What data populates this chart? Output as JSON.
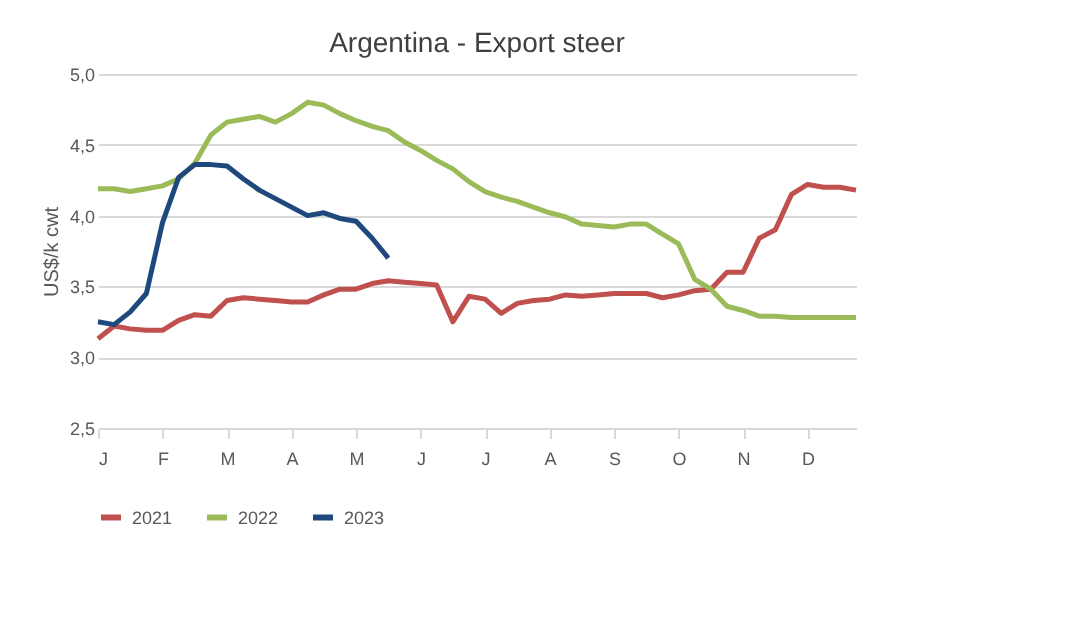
{
  "chart_data": {
    "type": "line",
    "title": "Argentina - Export steer",
    "ylabel": "US$/k cwt",
    "categories": [
      "J",
      null,
      null,
      null,
      "F",
      null,
      null,
      null,
      "M",
      null,
      null,
      null,
      "A",
      null,
      null,
      null,
      "M",
      null,
      null,
      null,
      "J",
      null,
      null,
      null,
      "J",
      null,
      null,
      null,
      "A",
      null,
      null,
      null,
      "S",
      null,
      null,
      null,
      "O",
      null,
      null,
      null,
      "N",
      null,
      null,
      null,
      "D",
      null,
      null,
      null
    ],
    "ylim": [
      2.5,
      5.0
    ],
    "yticks": [
      {
        "value": 2.5,
        "label": "2,5"
      },
      {
        "value": 3.0,
        "label": "3,0"
      },
      {
        "value": 3.5,
        "label": "3,5"
      },
      {
        "value": 4.0,
        "label": "4,0"
      },
      {
        "value": 4.5,
        "label": "4,5"
      },
      {
        "value": 5.0,
        "label": "5,0"
      }
    ],
    "grid": "y",
    "legend": "bottom",
    "marker": "none",
    "line_style": "solid",
    "series": [
      {
        "name": "2021",
        "color": "#c0504d",
        "values": [
          3.13,
          3.22,
          3.2,
          3.19,
          3.19,
          3.26,
          3.3,
          3.29,
          3.4,
          3.42,
          3.41,
          3.4,
          3.39,
          3.39,
          3.44,
          3.48,
          3.48,
          3.52,
          3.54,
          3.53,
          3.52,
          3.51,
          3.25,
          3.43,
          3.41,
          3.31,
          3.38,
          3.4,
          3.41,
          3.44,
          3.43,
          3.44,
          3.45,
          3.45,
          3.45,
          3.42,
          3.44,
          3.47,
          3.48,
          3.6,
          3.6,
          3.84,
          3.9,
          4.15,
          4.22,
          4.2,
          4.2,
          4.18
        ]
      },
      {
        "name": "2022",
        "color": "#9bbb59",
        "values": [
          4.19,
          4.19,
          4.17,
          4.19,
          4.21,
          4.26,
          4.37,
          4.57,
          4.66,
          4.68,
          4.7,
          4.66,
          4.72,
          4.8,
          4.78,
          4.72,
          4.67,
          4.63,
          4.6,
          4.52,
          4.46,
          4.39,
          4.33,
          4.24,
          4.17,
          4.13,
          4.1,
          4.06,
          4.02,
          3.99,
          3.94,
          3.93,
          3.92,
          3.94,
          3.94,
          3.87,
          3.8,
          3.55,
          3.48,
          3.36,
          3.33,
          3.29,
          3.29,
          3.28,
          3.28,
          3.28,
          3.28,
          3.28
        ]
      },
      {
        "name": "2023",
        "color": "#1f497d",
        "values": [
          3.25,
          3.23,
          3.32,
          3.45,
          3.95,
          4.27,
          4.36,
          4.36,
          4.35,
          4.26,
          4.18,
          4.12,
          4.06,
          4.0,
          4.02,
          3.98,
          3.96,
          3.84,
          3.7,
          null,
          null,
          null,
          null,
          null,
          null,
          null,
          null,
          null,
          null,
          null,
          null,
          null,
          null,
          null,
          null,
          null,
          null,
          null,
          null,
          null,
          null,
          null,
          null,
          null,
          null,
          null,
          null,
          null
        ]
      }
    ]
  }
}
